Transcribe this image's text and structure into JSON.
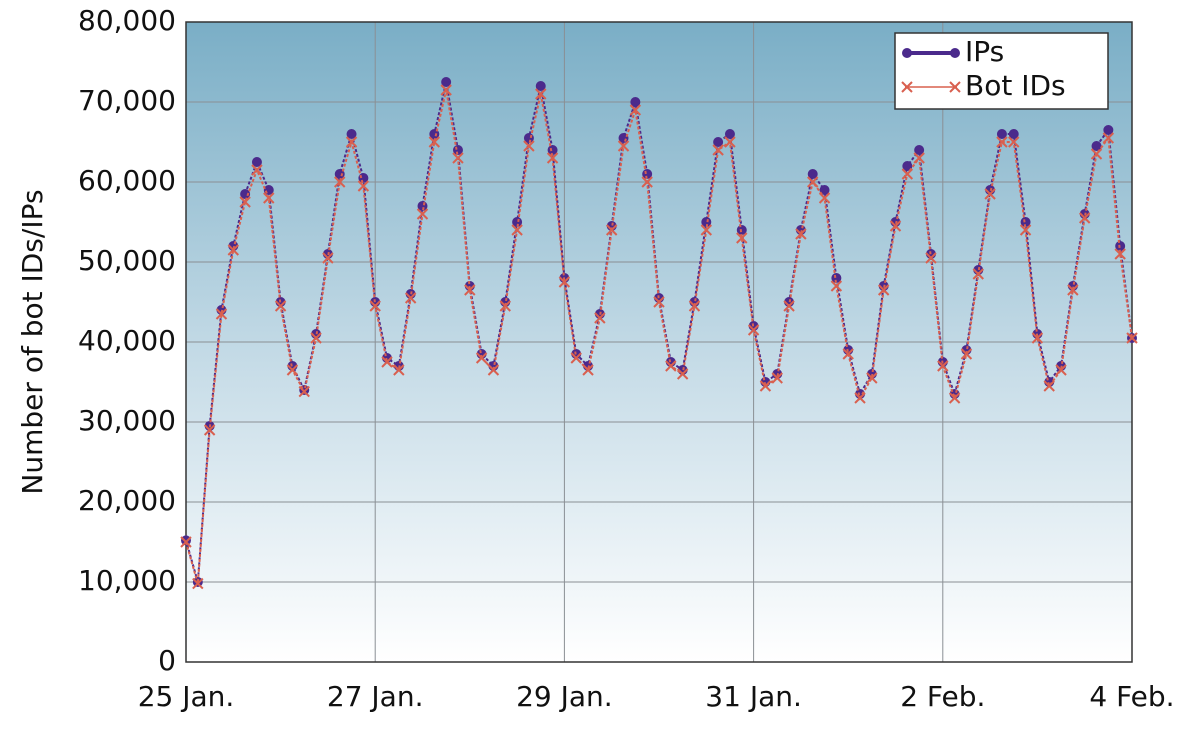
{
  "chart_data": {
    "type": "line",
    "y_label": "Number of bot IDs/IPs",
    "x": [
      0,
      0.125,
      0.25,
      0.375,
      0.5,
      0.625,
      0.75,
      0.875,
      1,
      1.125,
      1.25,
      1.375,
      1.5,
      1.625,
      1.75,
      1.875,
      2,
      2.125,
      2.25,
      2.375,
      2.5,
      2.625,
      2.75,
      2.875,
      3,
      3.125,
      3.25,
      3.375,
      3.5,
      3.625,
      3.75,
      3.875,
      4,
      4.125,
      4.25,
      4.375,
      4.5,
      4.625,
      4.75,
      4.875,
      5,
      5.125,
      5.25,
      5.375,
      5.5,
      5.625,
      5.75,
      5.875,
      6,
      6.125,
      6.25,
      6.375,
      6.5,
      6.625,
      6.75,
      6.875,
      7,
      7.125,
      7.25,
      7.375,
      7.5,
      7.625,
      7.75,
      7.875,
      8,
      8.125,
      8.25,
      8.375,
      8.5,
      8.625,
      8.75,
      8.875,
      9,
      9.125,
      9.25,
      9.375,
      9.5,
      9.625,
      9.75,
      9.875,
      10
    ],
    "series": [
      {
        "name": "IPs",
        "color": "#4b2a8c",
        "marker": "circle",
        "values": [
          15200,
          10000,
          29500,
          44000,
          52000,
          58500,
          62500,
          59000,
          45000,
          37000,
          34000,
          41000,
          51000,
          61000,
          66000,
          60500,
          45000,
          38000,
          37000,
          46000,
          57000,
          66000,
          72500,
          64000,
          47000,
          38500,
          37000,
          45000,
          55000,
          65500,
          72000,
          64000,
          48000,
          38500,
          37000,
          43500,
          54500,
          65500,
          70000,
          61000,
          45500,
          37500,
          36500,
          45000,
          55000,
          65000,
          66000,
          54000,
          42000,
          35000,
          36000,
          45000,
          54000,
          61000,
          59000,
          48000,
          39000,
          33500,
          36000,
          47000,
          55000,
          62000,
          64000,
          51000,
          37500,
          33500,
          39000,
          49000,
          59000,
          66000,
          66000,
          55000,
          41000,
          35000,
          37000,
          47000,
          56000,
          64500,
          66500,
          52000,
          40500
        ]
      },
      {
        "name": "Bot IDs",
        "color": "#d9604f",
        "marker": "x",
        "values": [
          15000,
          9800,
          29000,
          43500,
          51500,
          57500,
          61500,
          58000,
          44500,
          36500,
          33800,
          40500,
          50500,
          60000,
          65000,
          59500,
          44500,
          37500,
          36500,
          45500,
          56000,
          65000,
          71500,
          63000,
          46500,
          38000,
          36500,
          44500,
          54000,
          64500,
          71000,
          63000,
          47500,
          38000,
          36500,
          43000,
          54000,
          64500,
          69000,
          60000,
          45000,
          37000,
          36000,
          44500,
          54000,
          64000,
          65000,
          53000,
          41500,
          34500,
          35500,
          44500,
          53500,
          60000,
          58000,
          47000,
          38500,
          33000,
          35500,
          46500,
          54500,
          61000,
          63000,
          50500,
          37000,
          33000,
          38500,
          48500,
          58500,
          65000,
          65000,
          54000,
          40500,
          34500,
          36500,
          46500,
          55500,
          63500,
          65500,
          51000,
          40500
        ]
      }
    ],
    "xlim": [
      0,
      10
    ],
    "xticks": [
      {
        "value": 0,
        "label": "25 Jan."
      },
      {
        "value": 2,
        "label": "27 Jan."
      },
      {
        "value": 4,
        "label": "29 Jan."
      },
      {
        "value": 6,
        "label": "31 Jan."
      },
      {
        "value": 8,
        "label": "2 Feb."
      },
      {
        "value": 10,
        "label": "4 Feb."
      }
    ],
    "ylim": [
      0,
      80000
    ],
    "yticks": [
      0,
      {
        "value": 10000,
        "label": "10,000"
      },
      {
        "value": 20000,
        "label": "20,000"
      },
      {
        "value": 30000,
        "label": "30,000"
      },
      {
        "value": 40000,
        "label": "40,000"
      },
      {
        "value": 50000,
        "label": "50,000"
      },
      {
        "value": 60000,
        "label": "60,000"
      },
      {
        "value": 70000,
        "label": "70,000"
      },
      {
        "value": 80000,
        "label": "80,000"
      }
    ],
    "grid": true,
    "legend": "top-right"
  }
}
